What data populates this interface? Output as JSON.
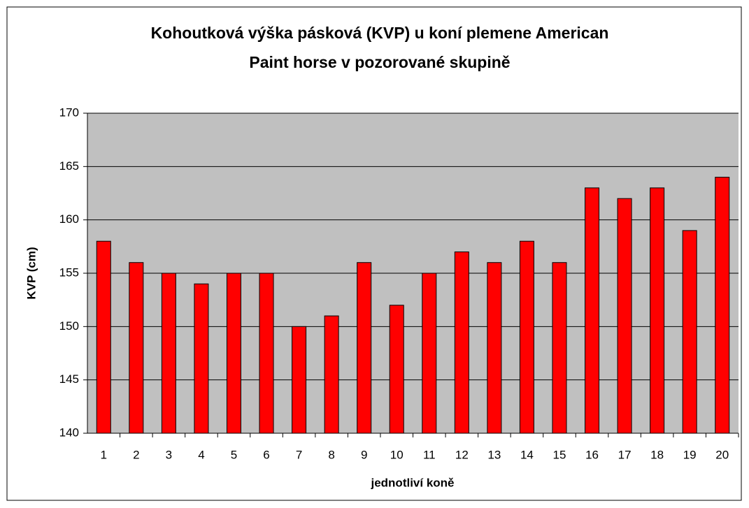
{
  "chart_data": {
    "type": "bar",
    "title": [
      "Kohoutková výška pásková (KVP) u koní plemene American",
      "Paint horse v pozorované skupině"
    ],
    "x_label": "jednotliví koně",
    "y_label": "KVP (cm)",
    "categories": [
      "1",
      "2",
      "3",
      "4",
      "5",
      "6",
      "7",
      "8",
      "9",
      "10",
      "11",
      "12",
      "13",
      "14",
      "15",
      "16",
      "17",
      "18",
      "19",
      "20"
    ],
    "values": [
      158,
      156,
      155,
      154,
      155,
      155,
      150,
      151,
      156,
      152,
      155,
      157,
      156,
      158,
      156,
      163,
      162,
      163,
      159,
      164
    ],
    "color": "#ff0000",
    "ylim": [
      140,
      170
    ],
    "yticks": [
      140,
      145,
      150,
      155,
      160,
      165,
      170
    ],
    "grid": true
  }
}
